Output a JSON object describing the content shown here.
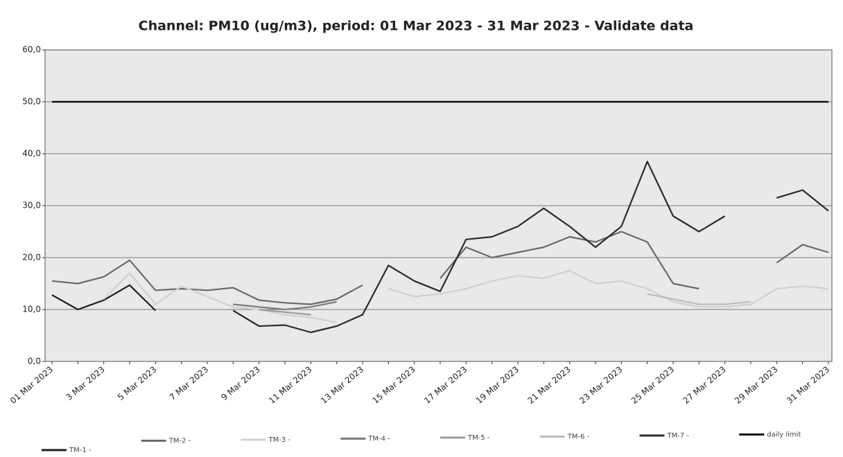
{
  "chart_data": {
    "type": "line",
    "title": "Channel: PM10 (ug/m3), period: 01 Mar 2023 - 31 Mar 2023 - Validate data",
    "categories": [
      "01 Mar 2023",
      null,
      "3 Mar 2023",
      null,
      "5 Mar 2023",
      null,
      "7 Mar 2023",
      null,
      "9 Mar 2023",
      null,
      "11 Mar 2023",
      null,
      "13 Mar 2023",
      null,
      "15 Mar 2023",
      null,
      "17 Mar 2023",
      null,
      "19 Mar 2023",
      null,
      "21 Mar 2023",
      null,
      "23 Mar 2023",
      null,
      "25 Mar 2023",
      null,
      "27 Mar 2023",
      null,
      "29 Mar 2023",
      null,
      "31 Mar 2023"
    ],
    "series": [
      {
        "name": "TM-1 -",
        "color": "#1e1e1e",
        "values": [
          12.8,
          10,
          11.8,
          14.7,
          9.8,
          null,
          null,
          null,
          null,
          null,
          null,
          null,
          null,
          null,
          null,
          null,
          null,
          null,
          null,
          null,
          null,
          null,
          null,
          null,
          null,
          null,
          null,
          null,
          null,
          null,
          null
        ]
      },
      {
        "name": "TM-2 -",
        "color": "#6a6a6a",
        "values": [
          15.5,
          15,
          16.3,
          19.5,
          13.7,
          14,
          13.7,
          14.2,
          11.8,
          11.3,
          11,
          12,
          14.7,
          null,
          null,
          16,
          22,
          20,
          21,
          22,
          24,
          23,
          25,
          23,
          15,
          14,
          null,
          null,
          19,
          22.5,
          21
        ]
      },
      {
        "name": "TM-3 -",
        "color": "#d0d0d0",
        "values": [
          null,
          null,
          12,
          17,
          11,
          14.5,
          12.5,
          10.5,
          10,
          9,
          8.5,
          7.5,
          null,
          14,
          12.5,
          13,
          14,
          15.5,
          16.5,
          16,
          17.5,
          15,
          15.5,
          14,
          11.5,
          10.5,
          10.5,
          11,
          14,
          14.5,
          14
        ]
      },
      {
        "name": "TM-4 -",
        "color": "#7a7a7a",
        "values": [
          null,
          null,
          null,
          null,
          null,
          null,
          null,
          11,
          10.5,
          10,
          10.5,
          11.5,
          null,
          null,
          null,
          null,
          null,
          null,
          null,
          null,
          null,
          null,
          null,
          null,
          null,
          null,
          null,
          null,
          null,
          null,
          null
        ]
      },
      {
        "name": "TM-5 -",
        "color": "#9a9a9a",
        "values": [
          null,
          null,
          null,
          null,
          null,
          null,
          null,
          null,
          10,
          9.5,
          9,
          null,
          null,
          null,
          null,
          null,
          null,
          null,
          null,
          null,
          null,
          null,
          null,
          null,
          null,
          null,
          null,
          null,
          null,
          null,
          null
        ]
      },
      {
        "name": "TM-6 -",
        "color": "#bdbdbd",
        "values": [
          null,
          null,
          null,
          null,
          null,
          null,
          null,
          null,
          null,
          null,
          null,
          null,
          null,
          null,
          null,
          null,
          null,
          null,
          null,
          null,
          null,
          null,
          null,
          13,
          12,
          11,
          11,
          11.5,
          null,
          null,
          null
        ]
      },
      {
        "name": "TM-7 -",
        "color": "#2a2a2a",
        "values": [
          null,
          null,
          null,
          null,
          null,
          null,
          null,
          9.8,
          6.8,
          7,
          5.6,
          6.8,
          9,
          18.5,
          15.5,
          13.5,
          23.5,
          24,
          26,
          29.5,
          26,
          22,
          26,
          38.5,
          28,
          25,
          28,
          null,
          31.5,
          33,
          29
        ]
      },
      {
        "name": "daily limit",
        "color": "#111111",
        "values": [
          50,
          50,
          50,
          50,
          50,
          50,
          50,
          50,
          50,
          50,
          50,
          50,
          50,
          50,
          50,
          50,
          50,
          50,
          50,
          50,
          50,
          50,
          50,
          50,
          50,
          50,
          50,
          50,
          50,
          50,
          50
        ]
      }
    ],
    "ylim": [
      0,
      60
    ],
    "yticks": [
      {
        "value": 0,
        "label": "0,0"
      },
      {
        "value": 10,
        "label": "10,0"
      },
      {
        "value": 20,
        "label": "20,0"
      },
      {
        "value": 30,
        "label": "30,0"
      },
      {
        "value": 40,
        "label": "40,0"
      },
      {
        "value": 50,
        "label": "50,0"
      },
      {
        "value": 60,
        "label": "60,0"
      }
    ],
    "grid": true,
    "legend": "bottom"
  }
}
